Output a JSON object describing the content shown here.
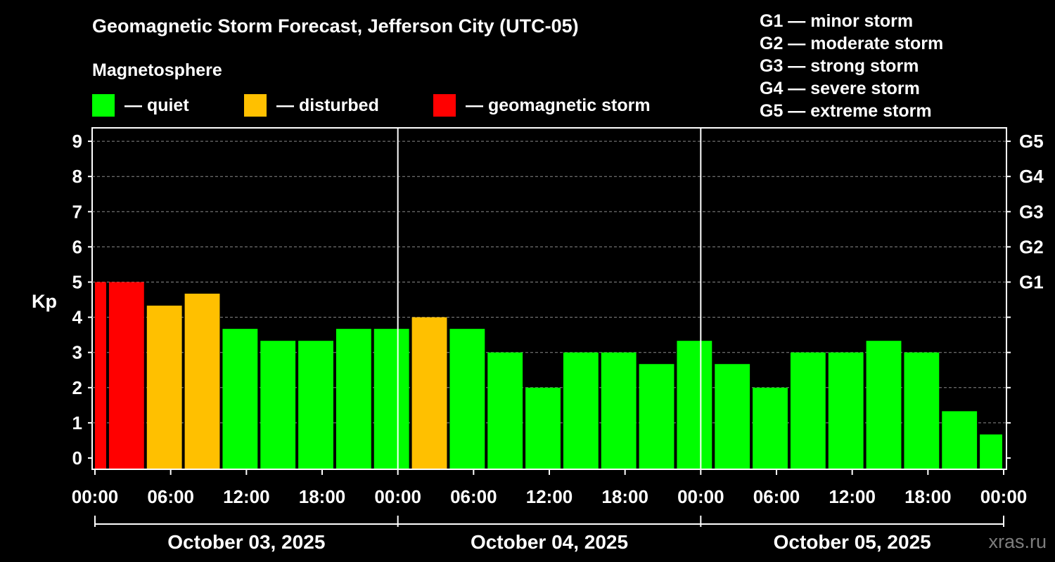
{
  "header": {
    "title": "Geomagnetic Storm Forecast, Jefferson City (UTC-05)",
    "subtitle": "Magnetosphere"
  },
  "legend": [
    {
      "label": "— quiet",
      "color": "#00ff00"
    },
    {
      "label": "— disturbed",
      "color": "#ffc000"
    },
    {
      "label": "— geomagnetic storm",
      "color": "#ff0000"
    }
  ],
  "storm_scale": [
    "G1 — minor storm",
    "G2 — moderate storm",
    "G3 — strong storm",
    "G4 — severe storm",
    "G5 — extreme storm"
  ],
  "watermark": "xras.ru",
  "chart_data": {
    "type": "bar",
    "title": "Geomagnetic Storm Forecast, Jefferson City (UTC-05)",
    "ylabel": "Kp",
    "ylim": [
      0,
      9
    ],
    "yticks": [
      "0",
      "1",
      "2",
      "3",
      "4",
      "5",
      "6",
      "7",
      "8",
      "9"
    ],
    "right_axis": [
      {
        "kp": 5,
        "label": "G1"
      },
      {
        "kp": 6,
        "label": "G2"
      },
      {
        "kp": 7,
        "label": "G3"
      },
      {
        "kp": 8,
        "label": "G4"
      },
      {
        "kp": 9,
        "label": "G5"
      }
    ],
    "x_range_hours": [
      0,
      72
    ],
    "xtick_labels": [
      "00:00",
      "06:00",
      "12:00",
      "18:00",
      "00:00",
      "06:00",
      "12:00",
      "18:00",
      "00:00",
      "06:00",
      "12:00",
      "18:00",
      "00:00"
    ],
    "dates": [
      "October 03, 2025",
      "October 04, 2025",
      "October 05, 2025"
    ],
    "colors": {
      "quiet": "#00ff00",
      "disturbed": "#ffc000",
      "storm": "#ff0000"
    },
    "bars": [
      {
        "start": 0,
        "end": 1,
        "kp": 5.0,
        "level": "storm"
      },
      {
        "start": 1,
        "end": 4,
        "kp": 5.0,
        "level": "storm"
      },
      {
        "start": 4,
        "end": 7,
        "kp": 4.33,
        "level": "disturbed"
      },
      {
        "start": 7,
        "end": 10,
        "kp": 4.67,
        "level": "disturbed"
      },
      {
        "start": 10,
        "end": 13,
        "kp": 3.67,
        "level": "quiet"
      },
      {
        "start": 13,
        "end": 16,
        "kp": 3.33,
        "level": "quiet"
      },
      {
        "start": 16,
        "end": 19,
        "kp": 3.33,
        "level": "quiet"
      },
      {
        "start": 19,
        "end": 22,
        "kp": 3.67,
        "level": "quiet"
      },
      {
        "start": 22,
        "end": 25,
        "kp": 3.67,
        "level": "quiet"
      },
      {
        "start": 25,
        "end": 28,
        "kp": 4.0,
        "level": "disturbed"
      },
      {
        "start": 28,
        "end": 31,
        "kp": 3.67,
        "level": "quiet"
      },
      {
        "start": 31,
        "end": 34,
        "kp": 3.0,
        "level": "quiet"
      },
      {
        "start": 34,
        "end": 37,
        "kp": 2.0,
        "level": "quiet"
      },
      {
        "start": 37,
        "end": 40,
        "kp": 3.0,
        "level": "quiet"
      },
      {
        "start": 40,
        "end": 43,
        "kp": 3.0,
        "level": "quiet"
      },
      {
        "start": 43,
        "end": 46,
        "kp": 2.67,
        "level": "quiet"
      },
      {
        "start": 46,
        "end": 49,
        "kp": 3.33,
        "level": "quiet"
      },
      {
        "start": 49,
        "end": 52,
        "kp": 2.67,
        "level": "quiet"
      },
      {
        "start": 52,
        "end": 55,
        "kp": 2.0,
        "level": "quiet"
      },
      {
        "start": 55,
        "end": 58,
        "kp": 3.0,
        "level": "quiet"
      },
      {
        "start": 58,
        "end": 61,
        "kp": 3.0,
        "level": "quiet"
      },
      {
        "start": 61,
        "end": 64,
        "kp": 3.33,
        "level": "quiet"
      },
      {
        "start": 64,
        "end": 67,
        "kp": 3.0,
        "level": "quiet"
      },
      {
        "start": 67,
        "end": 70,
        "kp": 1.33,
        "level": "quiet"
      },
      {
        "start": 70,
        "end": 72,
        "kp": 0.67,
        "level": "quiet"
      }
    ]
  }
}
